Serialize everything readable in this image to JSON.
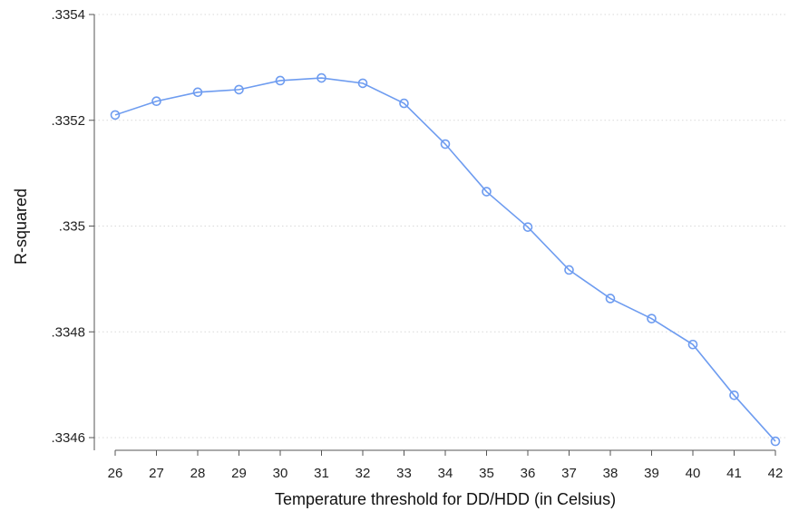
{
  "chart_data": {
    "type": "line",
    "title": "",
    "xlabel": "Temperature threshold for DD/HDD (in Celsius)",
    "ylabel": "R-squared",
    "x": [
      26,
      27,
      28,
      29,
      30,
      31,
      32,
      33,
      34,
      35,
      36,
      37,
      38,
      39,
      40,
      41,
      42
    ],
    "series": [
      {
        "name": "",
        "values": [
          0.33521,
          0.335236,
          0.335253,
          0.335258,
          0.335275,
          0.33528,
          0.33527,
          0.335232,
          0.335155,
          0.335065,
          0.334998,
          0.334917,
          0.334863,
          0.334825,
          0.334776,
          0.33468,
          0.334593
        ]
      }
    ],
    "xlim": [
      26,
      42
    ],
    "ylim": [
      0.3346,
      0.3354
    ],
    "xticks": [
      "26",
      "27",
      "28",
      "29",
      "30",
      "31",
      "32",
      "33",
      "34",
      "35",
      "36",
      "37",
      "38",
      "39",
      "40",
      "41",
      "42"
    ],
    "yticks": [
      {
        "value": 0.3346,
        "label": ".3346"
      },
      {
        "value": 0.3348,
        "label": ".3348"
      },
      {
        "value": 0.335,
        "label": ".335"
      },
      {
        "value": 0.3352,
        "label": ".3352"
      },
      {
        "value": 0.3354,
        "label": ".3354"
      }
    ],
    "grid": "horizontal",
    "legend": "none",
    "colors": {
      "series": "#6e9cf0",
      "grid": "#d9d9d9",
      "axis": "#555555"
    }
  }
}
